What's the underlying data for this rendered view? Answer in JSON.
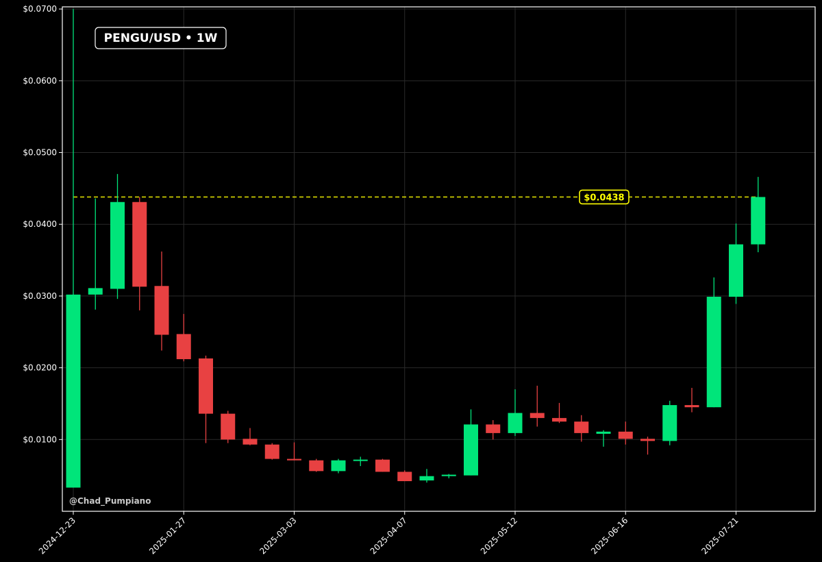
{
  "chart_data": {
    "type": "candlestick",
    "title": "PENGU/USD • 1W",
    "watermark": "@Chad_Pumpiano",
    "xlabel": "",
    "ylabel": "",
    "ylim": [
      0.0,
      0.0703
    ],
    "yticks": [
      {
        "value": 0.01,
        "label": "$0.0100"
      },
      {
        "value": 0.02,
        "label": "$0.0200"
      },
      {
        "value": 0.03,
        "label": "$0.0300"
      },
      {
        "value": 0.04,
        "label": "$0.0400"
      },
      {
        "value": 0.05,
        "label": "$0.0500"
      },
      {
        "value": 0.06,
        "label": "$0.0600"
      },
      {
        "value": 0.07,
        "label": "$0.0700"
      }
    ],
    "xticks": [
      "2024-12-23",
      "2025-01-27",
      "2025-03-03",
      "2025-04-07",
      "2025-05-12",
      "2025-06-16",
      "2025-07-21"
    ],
    "grid": true,
    "colors": {
      "up": "#00e57a",
      "down": "#e84142",
      "reference": "#ffff00",
      "grid": "#2a2a2a",
      "frame": "#ffffff"
    },
    "reference_line": {
      "value": 0.0438,
      "label": "$0.0438"
    },
    "candles": [
      {
        "date": "2024-12-23",
        "open": 0.0033,
        "high": 0.07,
        "low": 0.0033,
        "close": 0.0302
      },
      {
        "date": "2024-12-30",
        "open": 0.0302,
        "high": 0.0436,
        "low": 0.0281,
        "close": 0.0311
      },
      {
        "date": "2025-01-06",
        "open": 0.031,
        "high": 0.047,
        "low": 0.0296,
        "close": 0.0431
      },
      {
        "date": "2025-01-13",
        "open": 0.0431,
        "high": 0.0438,
        "low": 0.028,
        "close": 0.0313
      },
      {
        "date": "2025-01-20",
        "open": 0.0314,
        "high": 0.0362,
        "low": 0.0224,
        "close": 0.0246
      },
      {
        "date": "2025-01-27",
        "open": 0.0247,
        "high": 0.0275,
        "low": 0.0209,
        "close": 0.0212
      },
      {
        "date": "2025-02-03",
        "open": 0.0213,
        "high": 0.0217,
        "low": 0.0095,
        "close": 0.0136
      },
      {
        "date": "2025-02-10",
        "open": 0.0136,
        "high": 0.014,
        "low": 0.0095,
        "close": 0.01
      },
      {
        "date": "2025-02-17",
        "open": 0.0101,
        "high": 0.0116,
        "low": 0.0092,
        "close": 0.0093
      },
      {
        "date": "2025-02-24",
        "open": 0.0093,
        "high": 0.0095,
        "low": 0.0072,
        "close": 0.0073
      },
      {
        "date": "2025-03-03",
        "open": 0.0073,
        "high": 0.0096,
        "low": 0.0071,
        "close": 0.0071
      },
      {
        "date": "2025-03-10",
        "open": 0.0071,
        "high": 0.0073,
        "low": 0.0055,
        "close": 0.0056
      },
      {
        "date": "2025-03-17",
        "open": 0.0056,
        "high": 0.0073,
        "low": 0.0053,
        "close": 0.0071
      },
      {
        "date": "2025-03-24",
        "open": 0.0071,
        "high": 0.0076,
        "low": 0.0063,
        "close": 0.0072
      },
      {
        "date": "2025-03-31",
        "open": 0.0072,
        "high": 0.0073,
        "low": 0.0055,
        "close": 0.0055
      },
      {
        "date": "2025-04-07",
        "open": 0.0055,
        "high": 0.0057,
        "low": 0.0042,
        "close": 0.0042
      },
      {
        "date": "2025-04-14",
        "open": 0.0043,
        "high": 0.0059,
        "low": 0.004,
        "close": 0.0049
      },
      {
        "date": "2025-04-21",
        "open": 0.0049,
        "high": 0.0052,
        "low": 0.0046,
        "close": 0.0051
      },
      {
        "date": "2025-04-28",
        "open": 0.005,
        "high": 0.0142,
        "low": 0.005,
        "close": 0.0121
      },
      {
        "date": "2025-05-05",
        "open": 0.0121,
        "high": 0.0127,
        "low": 0.01,
        "close": 0.0109
      },
      {
        "date": "2025-05-12",
        "open": 0.0109,
        "high": 0.017,
        "low": 0.0105,
        "close": 0.0137
      },
      {
        "date": "2025-05-19",
        "open": 0.0137,
        "high": 0.0175,
        "low": 0.0118,
        "close": 0.013
      },
      {
        "date": "2025-05-26",
        "open": 0.013,
        "high": 0.0151,
        "low": 0.0123,
        "close": 0.0125
      },
      {
        "date": "2025-06-02",
        "open": 0.0125,
        "high": 0.0134,
        "low": 0.0097,
        "close": 0.0109
      },
      {
        "date": "2025-06-09",
        "open": 0.0108,
        "high": 0.0113,
        "low": 0.009,
        "close": 0.0111
      },
      {
        "date": "2025-06-16",
        "open": 0.0111,
        "high": 0.0125,
        "low": 0.0093,
        "close": 0.0101
      },
      {
        "date": "2025-06-23",
        "open": 0.0101,
        "high": 0.0104,
        "low": 0.0079,
        "close": 0.0098
      },
      {
        "date": "2025-06-30",
        "open": 0.0098,
        "high": 0.0154,
        "low": 0.0092,
        "close": 0.0148
      },
      {
        "date": "2025-07-07",
        "open": 0.0148,
        "high": 0.0172,
        "low": 0.0138,
        "close": 0.0145
      },
      {
        "date": "2025-07-14",
        "open": 0.0145,
        "high": 0.0326,
        "low": 0.0145,
        "close": 0.0299
      },
      {
        "date": "2025-07-21",
        "open": 0.0299,
        "high": 0.0401,
        "low": 0.0289,
        "close": 0.0372
      },
      {
        "date": "2025-07-28",
        "open": 0.0372,
        "high": 0.0466,
        "low": 0.0361,
        "close": 0.0438
      }
    ]
  }
}
